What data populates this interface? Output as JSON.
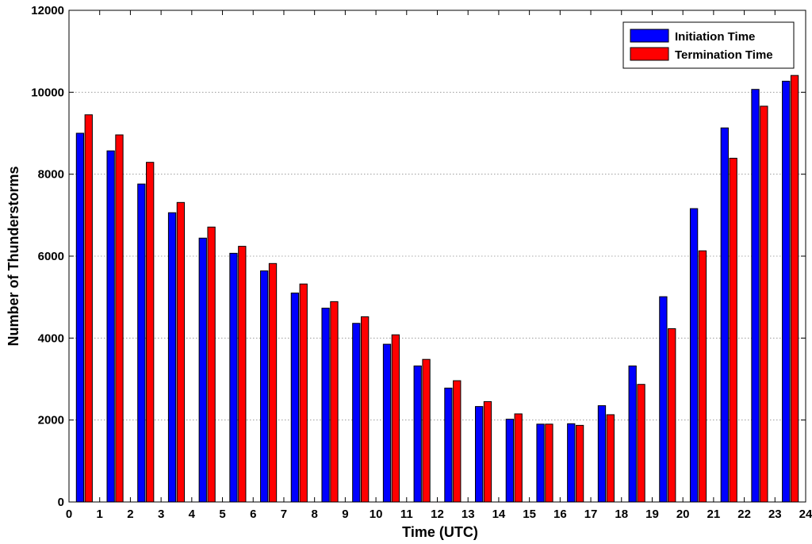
{
  "chart_data": {
    "type": "bar",
    "title": "",
    "xlabel": "Time (UTC)",
    "ylabel": "Number of Thunderstorms",
    "x_ticks": [
      0,
      1,
      2,
      3,
      4,
      5,
      6,
      7,
      8,
      9,
      10,
      11,
      12,
      13,
      14,
      15,
      16,
      17,
      18,
      19,
      20,
      21,
      22,
      23,
      24
    ],
    "y_ticks": [
      0,
      2000,
      4000,
      6000,
      8000,
      10000,
      12000
    ],
    "xlim": [
      0,
      24
    ],
    "ylim": [
      0,
      12000
    ],
    "grid": "horizontal dotted at y ticks",
    "legend_position": "top-right",
    "categories": [
      "0.5",
      "1.5",
      "2.5",
      "3.5",
      "4.5",
      "5.5",
      "6.5",
      "7.5",
      "8.5",
      "9.5",
      "10.5",
      "11.5",
      "12.5",
      "13.5",
      "14.5",
      "15.5",
      "16.5",
      "17.5",
      "18.5",
      "19.5",
      "20.5",
      "21.5",
      "22.5",
      "23.5"
    ],
    "series": [
      {
        "name": "Initiation Time",
        "color": "#0000ff",
        "values": [
          9000,
          8570,
          7760,
          7060,
          6440,
          6070,
          5640,
          5100,
          4730,
          4360,
          3850,
          3320,
          2780,
          2330,
          2020,
          1900,
          1910,
          2350,
          3320,
          5010,
          7160,
          9130,
          10070,
          10270
        ]
      },
      {
        "name": "Termination Time",
        "color": "#ff0000",
        "values": [
          9450,
          8960,
          8290,
          7310,
          6710,
          6240,
          5820,
          5320,
          4890,
          4520,
          4080,
          3480,
          2960,
          2450,
          2150,
          1900,
          1870,
          2130,
          2870,
          4230,
          6130,
          8390,
          9660,
          10410
        ]
      }
    ]
  }
}
